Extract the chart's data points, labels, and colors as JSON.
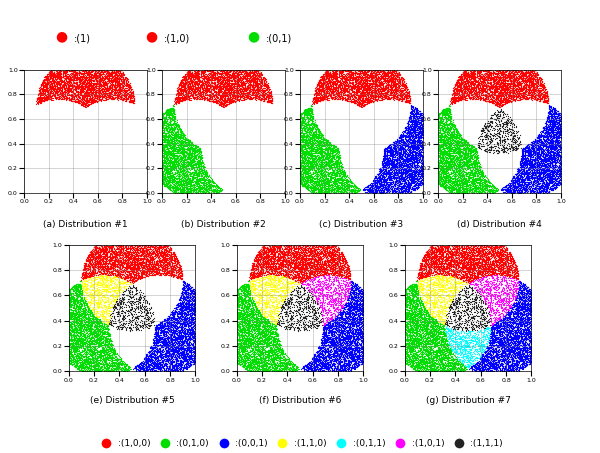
{
  "n_points": 4000,
  "seed": 42,
  "colors": {
    "red": "#ff0000",
    "green": "#00dd00",
    "blue": "#0000ff",
    "yellow": "#ffff00",
    "cyan": "#00ffff",
    "magenta": "#ff00ff",
    "black": "#222222"
  },
  "legend_bottom": [
    {
      "color": "#ff0000",
      "label": ":(1,0,0)"
    },
    {
      "color": "#00dd00",
      "label": ":(0,1,0)"
    },
    {
      "color": "#0000ff",
      "label": ":(0,0,1)"
    },
    {
      "color": "#ffff00",
      "label": ":(1,1,0)"
    },
    {
      "color": "#00ffff",
      "label": ":(0,1,1)"
    },
    {
      "color": "#ff00ff",
      "label": ":(1,0,1)"
    },
    {
      "color": "#222222",
      "label": ":(1,1,1)"
    }
  ],
  "subplot_labels": [
    "(a) Distribution #1",
    "(b) Distribution #2",
    "(c) Distribution #3",
    "(d) Distribution #4",
    "(e) Distribution #5",
    "(f) Distribution #6",
    "(g) Distribution #7"
  ]
}
